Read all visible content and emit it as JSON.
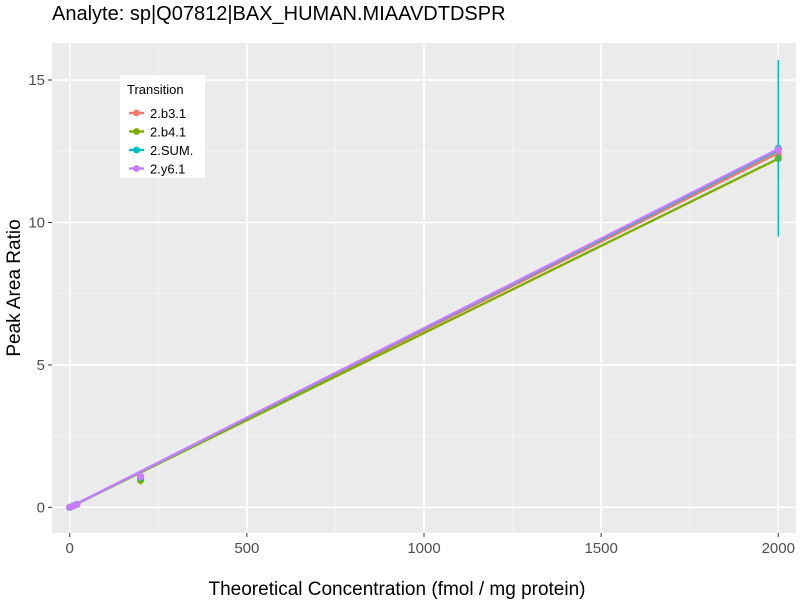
{
  "chart_data": {
    "type": "line",
    "title": "Analyte: sp|Q07812|BAX_HUMAN.MIAAVDTDSPR",
    "xlabel": "Theoretical Concentration (fmol / mg protein)",
    "ylabel": "Peak Area Ratio",
    "xlim": [
      -50,
      2050
    ],
    "ylim": [
      -0.9,
      16.3
    ],
    "x_ticks": [
      0,
      500,
      1000,
      1500,
      2000
    ],
    "x_tick_labels": [
      "0",
      "500",
      "1000",
      "1500",
      "2000"
    ],
    "y_ticks": [
      0,
      5,
      10,
      15
    ],
    "y_tick_labels": [
      "0",
      "5",
      "10",
      "15"
    ],
    "grid": true,
    "legend": {
      "title": "Transition",
      "position": "top-left"
    },
    "series": [
      {
        "name": "2.b3.1",
        "color": "#F8766D",
        "fit": [
          0,
          0.00622
        ],
        "points": [
          {
            "x": 0,
            "y": 0.0
          },
          {
            "x": 10,
            "y": 0.05
          },
          {
            "x": 20,
            "y": 0.1
          },
          {
            "x": 200,
            "y": 1.0,
            "err": 0.05
          },
          {
            "x": 2000,
            "y": 12.4,
            "err": 0.2
          }
        ]
      },
      {
        "name": "2.b4.1",
        "color": "#7CAE00",
        "fit": [
          0,
          0.00612
        ],
        "points": [
          {
            "x": 0,
            "y": 0.0
          },
          {
            "x": 10,
            "y": 0.05
          },
          {
            "x": 20,
            "y": 0.1
          },
          {
            "x": 200,
            "y": 0.95,
            "err": 0.15
          },
          {
            "x": 2000,
            "y": 12.25,
            "err": 0.7
          }
        ]
      },
      {
        "name": "2.SUM.",
        "color": "#00BFC4",
        "fit": [
          0,
          0.00627
        ],
        "points": [
          {
            "x": 0,
            "y": 0.0
          },
          {
            "x": 10,
            "y": 0.05
          },
          {
            "x": 20,
            "y": 0.1
          },
          {
            "x": 200,
            "y": 1.05,
            "err": 0.1
          },
          {
            "x": 2000,
            "y": 12.6,
            "err": 3.1
          }
        ]
      },
      {
        "name": "2.y6.1",
        "color": "#C77CFF",
        "fit": [
          0,
          0.00629
        ],
        "points": [
          {
            "x": 0,
            "y": 0.0
          },
          {
            "x": 10,
            "y": 0.05
          },
          {
            "x": 20,
            "y": 0.1
          },
          {
            "x": 200,
            "y": 1.08,
            "err": 0.05
          },
          {
            "x": 2000,
            "y": 12.55,
            "err": 0.15
          }
        ]
      }
    ]
  }
}
